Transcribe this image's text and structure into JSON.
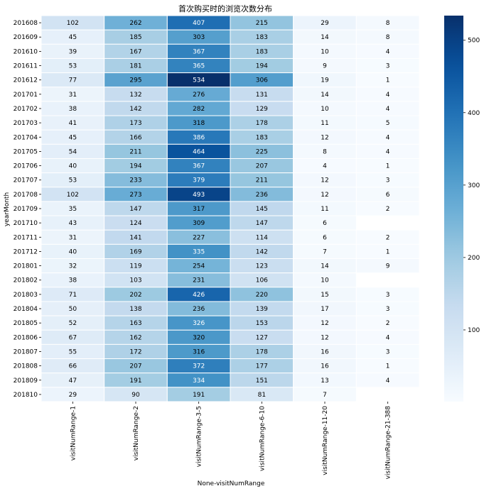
{
  "chart_data": {
    "type": "heatmap",
    "title": "首次购买时的浏览次数分布",
    "xlabel": "None-visitNumRange",
    "ylabel": "yearMonth",
    "columns": [
      "visitNumRange-1",
      "visitNumRange-2",
      "visitNumRange-3-5",
      "visitNumRange-6-10",
      "visitNumRange-11-20",
      "visitNumRange-21-388"
    ],
    "rows": [
      "201608",
      "201609",
      "201610",
      "201611",
      "201612",
      "201701",
      "201702",
      "201703",
      "201704",
      "201705",
      "201706",
      "201707",
      "201708",
      "201709",
      "201710",
      "201711",
      "201712",
      "201801",
      "201802",
      "201803",
      "201804",
      "201805",
      "201806",
      "201807",
      "201808",
      "201809",
      "201810"
    ],
    "values": [
      [
        102,
        262,
        407,
        215,
        29,
        8
      ],
      [
        45,
        185,
        303,
        183,
        14,
        8
      ],
      [
        39,
        167,
        367,
        183,
        10,
        4
      ],
      [
        53,
        181,
        365,
        194,
        9,
        3
      ],
      [
        77,
        295,
        534,
        306,
        19,
        1
      ],
      [
        31,
        132,
        276,
        131,
        14,
        4
      ],
      [
        38,
        142,
        282,
        129,
        10,
        4
      ],
      [
        41,
        173,
        318,
        178,
        11,
        5
      ],
      [
        45,
        166,
        386,
        183,
        12,
        4
      ],
      [
        54,
        211,
        464,
        225,
        8,
        4
      ],
      [
        40,
        194,
        367,
        207,
        4,
        1
      ],
      [
        53,
        233,
        379,
        211,
        12,
        3
      ],
      [
        102,
        273,
        493,
        236,
        12,
        6
      ],
      [
        35,
        147,
        317,
        145,
        11,
        2
      ],
      [
        43,
        124,
        309,
        147,
        6,
        null
      ],
      [
        31,
        141,
        227,
        114,
        6,
        2
      ],
      [
        40,
        169,
        335,
        142,
        7,
        1
      ],
      [
        32,
        119,
        254,
        123,
        14,
        9
      ],
      [
        38,
        103,
        231,
        106,
        10,
        null
      ],
      [
        71,
        202,
        426,
        220,
        15,
        3
      ],
      [
        50,
        138,
        236,
        139,
        17,
        3
      ],
      [
        52,
        163,
        326,
        153,
        12,
        2
      ],
      [
        67,
        162,
        320,
        127,
        12,
        4
      ],
      [
        55,
        172,
        316,
        178,
        16,
        3
      ],
      [
        66,
        207,
        372,
        177,
        16,
        1
      ],
      [
        47,
        191,
        334,
        151,
        13,
        4
      ],
      [
        29,
        90,
        191,
        81,
        7,
        null
      ]
    ],
    "colorbar": {
      "min": 1,
      "max": 534,
      "ticks": [
        100,
        200,
        300,
        400,
        500
      ],
      "colormap": "Blues"
    },
    "colors": {
      "low": "#f7fbff",
      "high": "#08306b"
    }
  }
}
